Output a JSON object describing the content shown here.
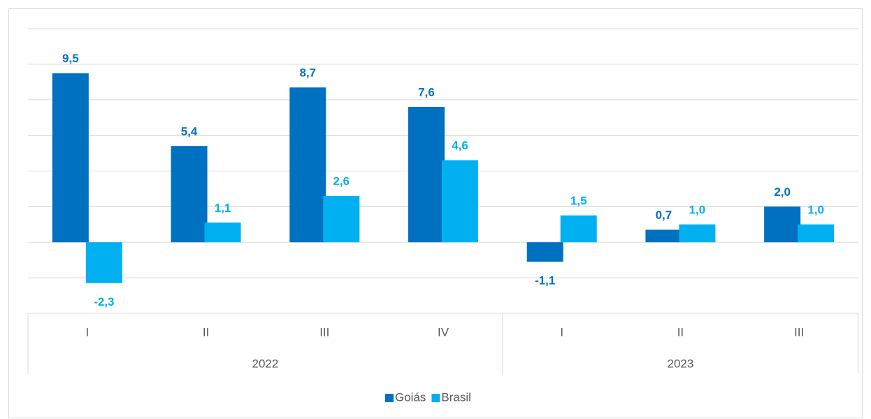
{
  "chart_data": {
    "type": "bar",
    "groups": [
      {
        "name": "2022",
        "categories": [
          "I",
          "II",
          "III",
          "IV"
        ]
      },
      {
        "name": "2023",
        "categories": [
          "I",
          "II",
          "III"
        ]
      }
    ],
    "series": [
      {
        "name": "Goiás",
        "color": "#0070c0",
        "values": [
          9.5,
          5.4,
          8.7,
          7.6,
          -1.1,
          0.7,
          2.0
        ],
        "value_labels": [
          "9,5",
          "5,4",
          "8,7",
          "7,6",
          "-1,1",
          "0,7",
          "2,0"
        ]
      },
      {
        "name": "Brasil",
        "color": "#00b0f0",
        "values": [
          -2.3,
          1.1,
          2.6,
          4.6,
          1.5,
          1.0,
          1.0
        ],
        "value_labels": [
          "-2,3",
          "1,1",
          "2,6",
          "4,6",
          "1,5",
          "1,0",
          "1,0"
        ]
      }
    ],
    "ylim": [
      -4,
      12
    ],
    "yticks": [
      -4,
      -2,
      0,
      2,
      4,
      6,
      8,
      10,
      12
    ],
    "grid": true,
    "legend": "bottom"
  }
}
